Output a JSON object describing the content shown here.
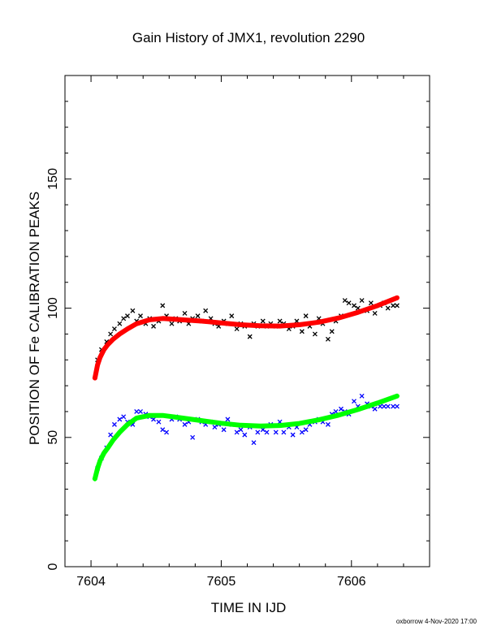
{
  "chart_data": {
    "type": "scatter",
    "title": "Gain History of JMX1, revolution 2290",
    "xlabel": "TIME IN IJD",
    "ylabel": "POSITION OF Fe CALIBRATION PEAKS",
    "footer": "oxborrow  4-Nov-2020 17:00",
    "xlim": [
      7603.8,
      7606.6
    ],
    "ylim": [
      0,
      190
    ],
    "x_ticks": [
      7604,
      7605,
      7606
    ],
    "x_tick_labels": [
      "7604",
      "7605",
      "7606"
    ],
    "y_ticks": [
      0,
      50,
      100,
      150
    ],
    "y_tick_labels": [
      "0",
      "50",
      "100",
      "150"
    ],
    "grid": false,
    "colors": {
      "upper_fit": "#ff0000",
      "lower_fit": "#00ff00",
      "upper_points": "#000000",
      "lower_points": "#0000ff"
    },
    "series": [
      {
        "marker": "x",
        "color": "#000000",
        "x": [
          7604.05,
          7604.08,
          7604.12,
          7604.15,
          7604.18,
          7604.22,
          7604.25,
          7604.28,
          7604.32,
          7604.35,
          7604.38,
          7604.42,
          7604.45,
          7604.48,
          7604.52,
          7604.55,
          7604.58,
          7604.62,
          7604.65,
          7604.68,
          7604.72,
          7604.75,
          7604.78,
          7604.82,
          7604.85,
          7604.88,
          7604.92,
          7604.95,
          7604.98,
          7605.02,
          7605.05,
          7605.08,
          7605.12,
          7605.15,
          7605.18,
          7605.22,
          7605.25,
          7605.28,
          7605.32,
          7605.35,
          7605.38,
          7605.42,
          7605.45,
          7605.48,
          7605.52,
          7605.55,
          7605.58,
          7605.62,
          7605.65,
          7605.68,
          7605.72,
          7605.75,
          7605.78,
          7605.82,
          7605.85,
          7605.88,
          7605.92,
          7605.95,
          7605.98,
          7606.02,
          7606.05,
          7606.08,
          7606.12,
          7606.15,
          7606.18,
          7606.22,
          7606.25,
          7606.28,
          7606.32,
          7606.35
        ],
        "y": [
          80,
          84,
          87,
          90,
          92,
          94,
          96,
          97,
          99,
          95,
          97,
          94,
          96,
          93,
          95,
          101,
          97,
          94,
          96,
          95,
          98,
          94,
          96,
          97,
          95,
          99,
          96,
          94,
          93,
          95,
          94,
          97,
          92,
          94,
          93,
          89,
          94,
          93,
          95,
          93,
          94,
          93,
          95,
          94,
          92,
          93,
          95,
          91,
          97,
          93,
          90,
          96,
          94,
          88,
          91,
          95,
          97,
          103,
          102,
          101,
          100,
          103,
          99,
          102,
          98,
          101,
          102,
          100,
          101,
          101
        ]
      },
      {
        "marker": "x",
        "color": "#0000ff",
        "x": [
          7604.05,
          7604.08,
          7604.12,
          7604.15,
          7604.18,
          7604.22,
          7604.25,
          7604.28,
          7604.32,
          7604.35,
          7604.38,
          7604.42,
          7604.45,
          7604.48,
          7604.52,
          7604.55,
          7604.58,
          7604.62,
          7604.65,
          7604.68,
          7604.72,
          7604.75,
          7604.78,
          7604.82,
          7604.85,
          7604.88,
          7604.92,
          7604.95,
          7604.98,
          7605.02,
          7605.05,
          7605.08,
          7605.12,
          7605.15,
          7605.18,
          7605.22,
          7605.25,
          7605.28,
          7605.32,
          7605.35,
          7605.38,
          7605.42,
          7605.45,
          7605.48,
          7605.52,
          7605.55,
          7605.58,
          7605.62,
          7605.65,
          7605.68,
          7605.72,
          7605.75,
          7605.78,
          7605.82,
          7605.85,
          7605.88,
          7605.92,
          7605.95,
          7605.98,
          7606.02,
          7606.05,
          7606.08,
          7606.12,
          7606.15,
          7606.18,
          7606.22,
          7606.25,
          7606.28,
          7606.32,
          7606.35
        ],
        "y": [
          38,
          42,
          46,
          51,
          55,
          57,
          58,
          56,
          55,
          60,
          60,
          59,
          58,
          57,
          56,
          53,
          52,
          57,
          58,
          57,
          55,
          56,
          50,
          57,
          56,
          55,
          56,
          54,
          55,
          53,
          57,
          55,
          52,
          53,
          51,
          54,
          48,
          52,
          53,
          52,
          55,
          52,
          56,
          52,
          54,
          51,
          54,
          52,
          53,
          55,
          56,
          57,
          56,
          55,
          59,
          60,
          61,
          60,
          59,
          64,
          62,
          66,
          63,
          62,
          61,
          62,
          62,
          62,
          62,
          62
        ]
      },
      {
        "marker": "+",
        "color": "#ff0000",
        "name": "",
        "fit": true,
        "x": [
          7604.03,
          7604.05,
          7604.07,
          7604.1,
          7604.13,
          7604.17,
          7604.22,
          7604.28,
          7604.35,
          7604.45,
          7604.55,
          7604.7,
          7604.85,
          7605.0,
          7605.15,
          7605.3,
          7605.45,
          7605.6,
          7605.75,
          7605.9,
          7606.05,
          7606.2,
          7606.35
        ],
        "y": [
          73,
          78,
          81,
          84,
          86,
          88,
          90,
          92,
          94,
          95.5,
          96,
          95.5,
          95,
          94.3,
          93.6,
          93.2,
          93.1,
          93.6,
          94.6,
          96.2,
          98.4,
          101,
          104
        ]
      },
      {
        "marker": "+",
        "color": "#00ff00",
        "name": "",
        "fit": true,
        "x": [
          7604.03,
          7604.05,
          7604.07,
          7604.1,
          7604.13,
          7604.17,
          7604.22,
          7604.28,
          7604.35,
          7604.45,
          7604.55,
          7604.7,
          7604.85,
          7605.0,
          7605.15,
          7605.3,
          7605.45,
          7605.6,
          7605.75,
          7605.9,
          7606.05,
          7606.2,
          7606.35
        ],
        "y": [
          34,
          38,
          41,
          44,
          46,
          49,
          52,
          55,
          57.5,
          58.5,
          58.5,
          57.5,
          56.5,
          55.5,
          54.7,
          54.4,
          54.6,
          55.4,
          56.8,
          58.6,
          60.8,
          63.3,
          66
        ]
      }
    ]
  }
}
